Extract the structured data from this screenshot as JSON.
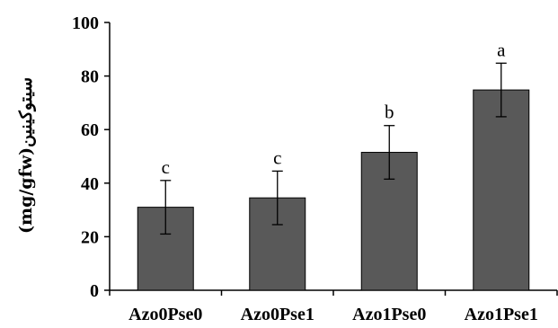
{
  "chart_data": {
    "type": "bar",
    "categories": [
      "Azo0Pse0",
      "Azo0Pse1",
      "Azo1Pse0",
      "Azo1Pse1"
    ],
    "values": [
      31,
      34.5,
      51.5,
      74.8
    ],
    "errors": [
      10,
      10,
      10,
      10
    ],
    "significance": [
      "c",
      "c",
      "b",
      "a"
    ],
    "ylabel": "سیتوکینین(mg/gfw)",
    "xlabel": "",
    "title": "",
    "ylim": [
      0,
      100
    ],
    "yticks": [
      0,
      20,
      40,
      60,
      80,
      100
    ],
    "grid": false,
    "colors": {
      "bar": "#595959",
      "bar_stroke": "#000000",
      "axis": "#000000"
    }
  }
}
